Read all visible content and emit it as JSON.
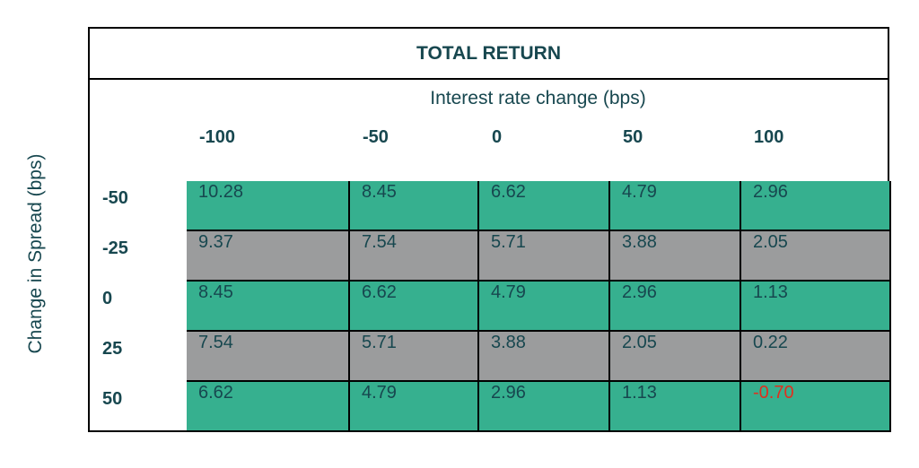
{
  "chart_data": {
    "type": "table",
    "title": "TOTAL RETURN",
    "xlabel": "Interest rate change (bps)",
    "ylabel": "Change in Spread (bps)",
    "columns": [
      "-100",
      "-50",
      "0",
      "50",
      "100"
    ],
    "rows": [
      "-50",
      "-25",
      "0",
      "25",
      "50"
    ],
    "values": [
      [
        "10.28",
        "8.45",
        "6.62",
        "4.79",
        "2.96"
      ],
      [
        "9.37",
        "7.54",
        "5.71",
        "3.88",
        "2.05"
      ],
      [
        "8.45",
        "6.62",
        "4.79",
        "2.96",
        "1.13"
      ],
      [
        "7.54",
        "5.71",
        "3.88",
        "2.05",
        "0.22"
      ],
      [
        "6.62",
        "4.79",
        "2.96",
        "1.13",
        "-0.70"
      ]
    ],
    "row_fill": [
      "green",
      "grey",
      "green",
      "grey",
      "green"
    ],
    "colors": {
      "green": "#36b08f",
      "grey": "#9b9c9d",
      "negative_text": "#e0301e",
      "text": "#17474f"
    }
  }
}
